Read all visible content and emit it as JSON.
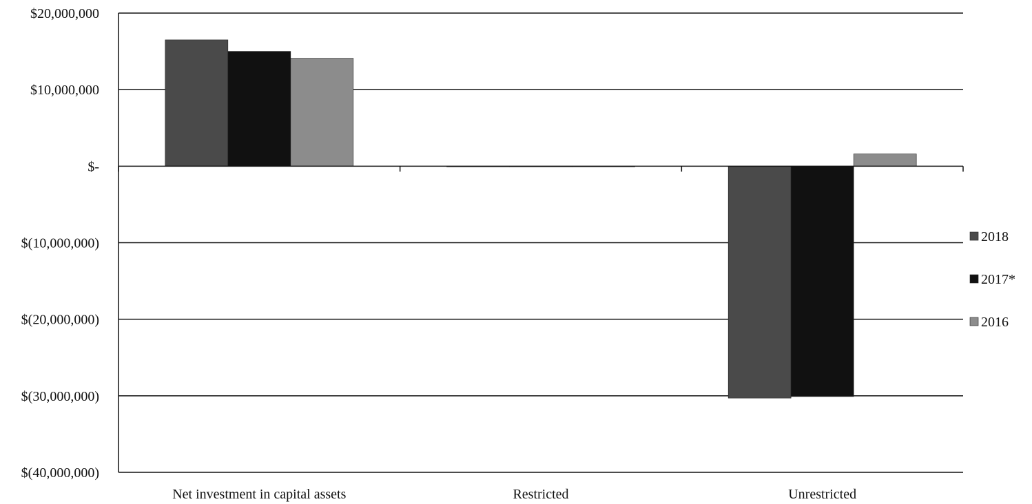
{
  "chart_data": {
    "type": "bar",
    "title": "",
    "xlabel": "",
    "ylabel": "",
    "categories": [
      "Net investment in capital assets",
      "Restricted",
      "Unrestricted"
    ],
    "series": [
      {
        "name": "2018",
        "values": [
          16500000,
          0,
          -30300000
        ],
        "color": "#4a4a4a"
      },
      {
        "name": "2017*",
        "values": [
          15000000,
          0,
          -30100000
        ],
        "color": "#111111"
      },
      {
        "name": "2016",
        "values": [
          14100000,
          0,
          1600000
        ],
        "color": "#8c8c8c"
      }
    ],
    "ylim": [
      -40000000,
      20000000
    ],
    "yticks": [
      20000000,
      10000000,
      0,
      -10000000,
      -20000000,
      -30000000,
      -40000000
    ],
    "ytick_labels": [
      "$20,000,000",
      "$10,000,000",
      "$-",
      "$(10,000,000)",
      "$(20,000,000)",
      "$(30,000,000)",
      "$(40,000,000)"
    ],
    "grid": true,
    "legend_position": "right"
  }
}
